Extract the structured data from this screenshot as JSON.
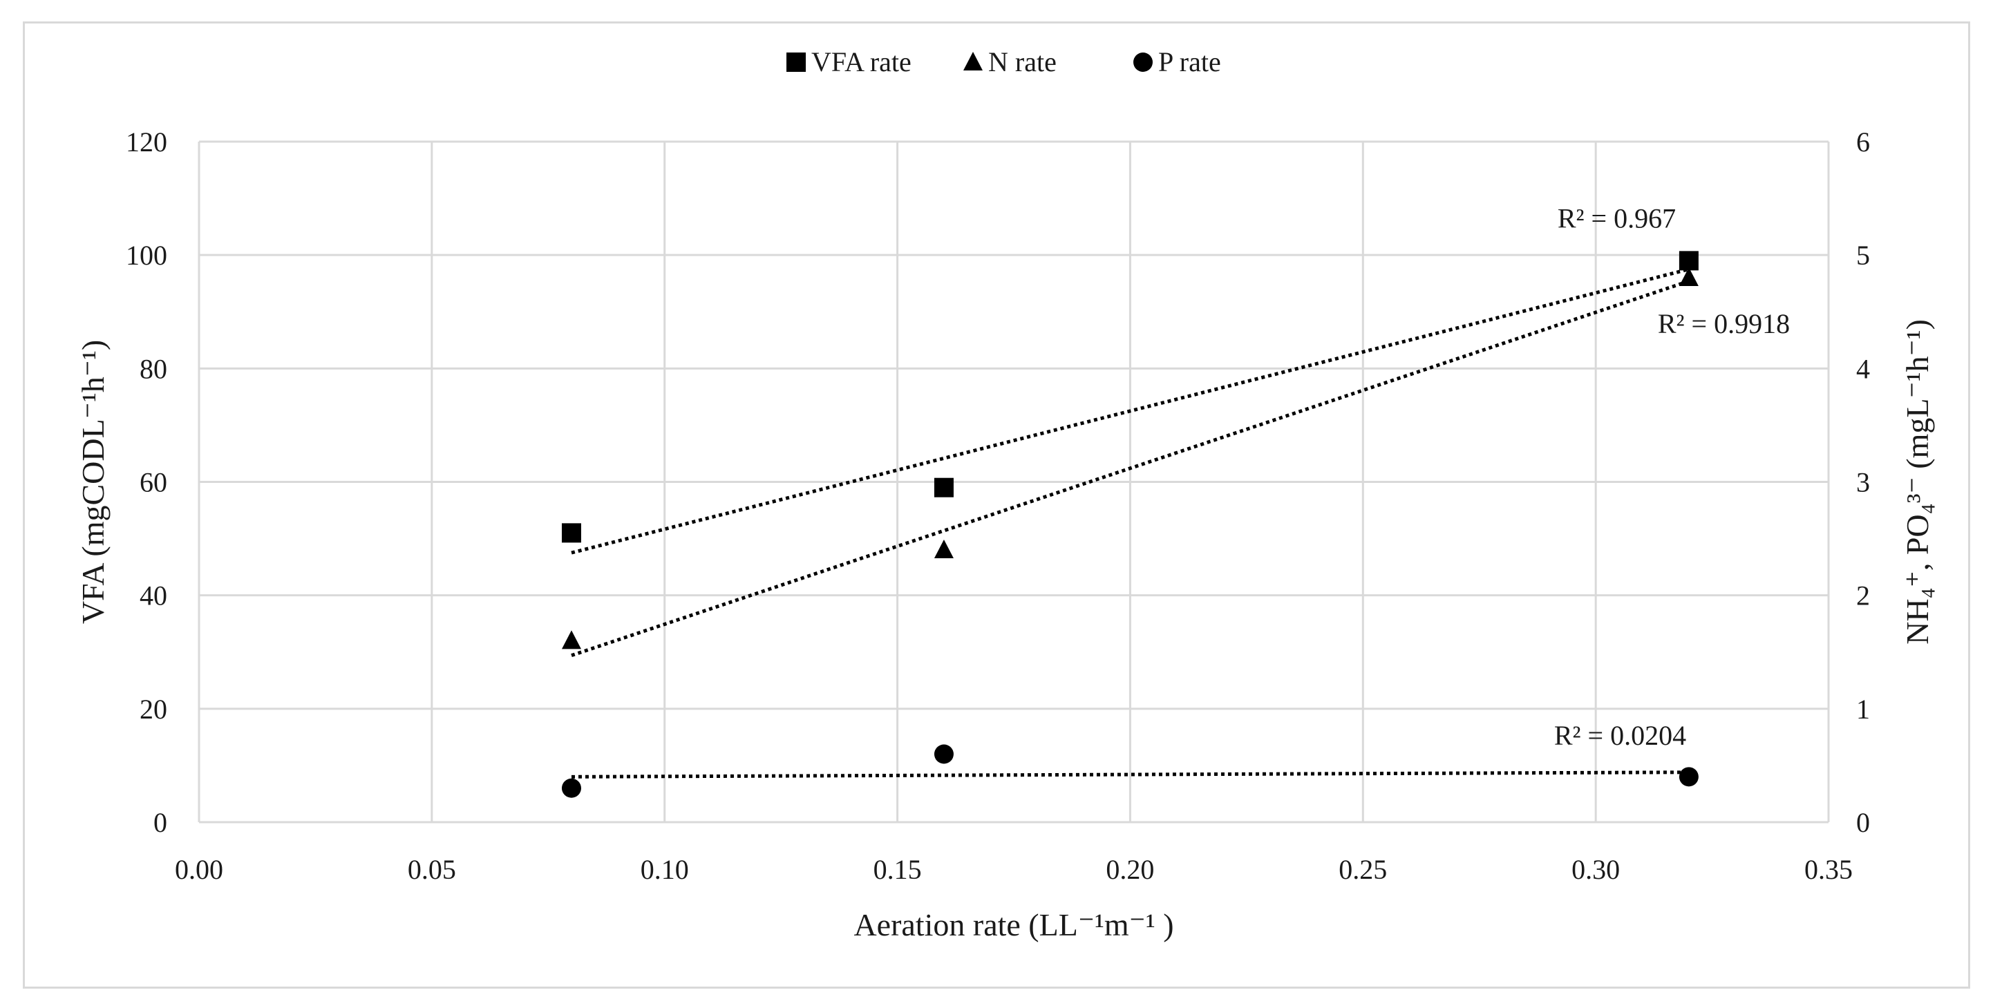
{
  "chart_data": {
    "type": "scatter",
    "title": "",
    "xlabel": "Aeration rate (LL⁻¹m⁻¹ )",
    "ylabel_left": "VFA (mgCODL⁻¹h⁻¹)",
    "ylabel_right": "NH₄⁺, PO₄³⁻  (mgL⁻¹h⁻¹)",
    "xlim": [
      0,
      0.35
    ],
    "ylim_left": [
      0,
      120
    ],
    "ylim_right": [
      0,
      6
    ],
    "x_ticks": [
      "0.00",
      "0.05",
      "0.10",
      "0.15",
      "0.20",
      "0.25",
      "0.30",
      "0.35"
    ],
    "y_ticks_left": [
      "0",
      "20",
      "40",
      "60",
      "80",
      "100",
      "120"
    ],
    "y_ticks_right": [
      "0",
      "1",
      "2",
      "3",
      "4",
      "5",
      "6"
    ],
    "grid": true,
    "legend_position": "top-center",
    "series": [
      {
        "name": "VFA rate",
        "axis": "left",
        "marker": "square",
        "x": [
          0.08,
          0.16,
          0.32
        ],
        "y": [
          51,
          59,
          99
        ],
        "trendline": {
          "type": "linear",
          "x_range": [
            0.08,
            0.32
          ],
          "y_range": [
            47.5,
            97.5
          ],
          "r2_label": "R² = 0.967"
        }
      },
      {
        "name": "N rate",
        "axis": "right",
        "marker": "triangle",
        "x": [
          0.08,
          0.16,
          0.32
        ],
        "y": [
          1.6,
          2.4,
          4.8
        ],
        "trendline": {
          "type": "linear",
          "x_range": [
            0.08,
            0.32
          ],
          "y_range": [
            1.47,
            4.77
          ],
          "r2_label": "R² = 0.9918"
        }
      },
      {
        "name": "P rate",
        "axis": "right",
        "marker": "circle",
        "x": [
          0.08,
          0.16,
          0.32
        ],
        "y": [
          0.3,
          0.6,
          0.4
        ],
        "trendline": {
          "type": "linear",
          "x_range": [
            0.08,
            0.32
          ],
          "y_range": [
            0.4,
            0.44
          ],
          "r2_label": "R² = 0.0204"
        }
      }
    ]
  }
}
